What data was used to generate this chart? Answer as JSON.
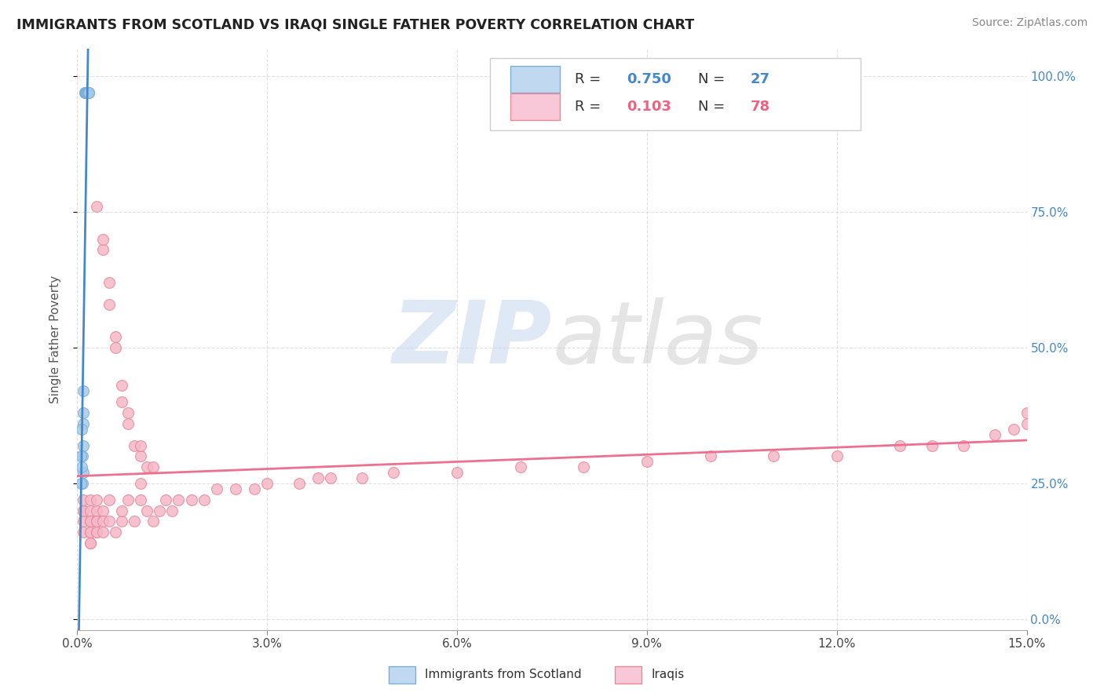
{
  "title": "IMMIGRANTS FROM SCOTLAND VS IRAQI SINGLE FATHER POVERTY CORRELATION CHART",
  "source": "Source: ZipAtlas.com",
  "ylabel": "Single Father Poverty",
  "xlim": [
    0.0,
    0.15
  ],
  "ylim": [
    -0.02,
    1.05
  ],
  "xticks": [
    0.0,
    0.03,
    0.06,
    0.09,
    0.12,
    0.15
  ],
  "xtick_labels": [
    "0.0%",
    "3.0%",
    "6.0%",
    "9.0%",
    "12.0%",
    "15.0%"
  ],
  "ytick_labels_right": [
    "100.0%",
    "75.0%",
    "50.0%",
    "25.0%",
    "0.0%"
  ],
  "yticks_right": [
    1.0,
    0.75,
    0.5,
    0.25,
    0.0
  ],
  "blue_R": 0.75,
  "blue_N": 27,
  "pink_R": 0.103,
  "pink_N": 78,
  "blue_scatter_color": "#a8c8e8",
  "pink_scatter_color": "#f5b8c8",
  "blue_scatter_edge": "#7ab0d8",
  "pink_scatter_edge": "#e88898",
  "blue_line_color": "#4488cc",
  "pink_line_color": "#ee7090",
  "legend_blue_face": "#c0d8f0",
  "legend_pink_face": "#f8c8d8",
  "background_color": "#ffffff",
  "grid_color": "#cccccc",
  "scotland_x": [
    0.0012,
    0.0012,
    0.0013,
    0.0013,
    0.0014,
    0.0014,
    0.0014,
    0.0015,
    0.0015,
    0.0016,
    0.0016,
    0.0017,
    0.0017,
    0.0018,
    0.0018,
    0.0018,
    0.001,
    0.001,
    0.001,
    0.0009,
    0.0009,
    0.0008,
    0.0008,
    0.0007,
    0.0007,
    0.0006,
    0.0006
  ],
  "scotland_y": [
    0.97,
    0.97,
    0.97,
    0.97,
    0.97,
    0.97,
    0.97,
    0.97,
    0.97,
    0.97,
    0.97,
    0.97,
    0.97,
    0.97,
    0.97,
    0.97,
    0.38,
    0.32,
    0.27,
    0.42,
    0.36,
    0.3,
    0.25,
    0.35,
    0.28,
    0.3,
    0.25
  ],
  "iraqi_x": [
    0.003,
    0.004,
    0.004,
    0.005,
    0.005,
    0.006,
    0.006,
    0.007,
    0.007,
    0.008,
    0.008,
    0.009,
    0.01,
    0.01,
    0.011,
    0.012,
    0.001,
    0.001,
    0.001,
    0.001,
    0.001,
    0.002,
    0.002,
    0.002,
    0.002,
    0.002,
    0.002,
    0.002,
    0.002,
    0.003,
    0.003,
    0.003,
    0.003,
    0.003,
    0.003,
    0.004,
    0.004,
    0.004,
    0.005,
    0.005,
    0.006,
    0.007,
    0.007,
    0.008,
    0.009,
    0.01,
    0.01,
    0.011,
    0.012,
    0.013,
    0.014,
    0.015,
    0.016,
    0.018,
    0.02,
    0.022,
    0.025,
    0.028,
    0.03,
    0.035,
    0.038,
    0.04,
    0.045,
    0.05,
    0.06,
    0.07,
    0.08,
    0.09,
    0.1,
    0.11,
    0.12,
    0.13,
    0.135,
    0.14,
    0.145,
    0.148,
    0.15,
    0.15
  ],
  "iraqi_y": [
    0.76,
    0.68,
    0.7,
    0.62,
    0.58,
    0.5,
    0.52,
    0.43,
    0.4,
    0.36,
    0.38,
    0.32,
    0.3,
    0.32,
    0.28,
    0.28,
    0.2,
    0.18,
    0.16,
    0.22,
    0.2,
    0.18,
    0.16,
    0.14,
    0.2,
    0.18,
    0.22,
    0.16,
    0.14,
    0.2,
    0.18,
    0.16,
    0.22,
    0.18,
    0.16,
    0.2,
    0.18,
    0.16,
    0.18,
    0.22,
    0.16,
    0.18,
    0.2,
    0.22,
    0.18,
    0.22,
    0.25,
    0.2,
    0.18,
    0.2,
    0.22,
    0.2,
    0.22,
    0.22,
    0.22,
    0.24,
    0.24,
    0.24,
    0.25,
    0.25,
    0.26,
    0.26,
    0.26,
    0.27,
    0.27,
    0.28,
    0.28,
    0.29,
    0.3,
    0.3,
    0.3,
    0.32,
    0.32,
    0.32,
    0.34,
    0.35,
    0.36,
    0.38
  ]
}
